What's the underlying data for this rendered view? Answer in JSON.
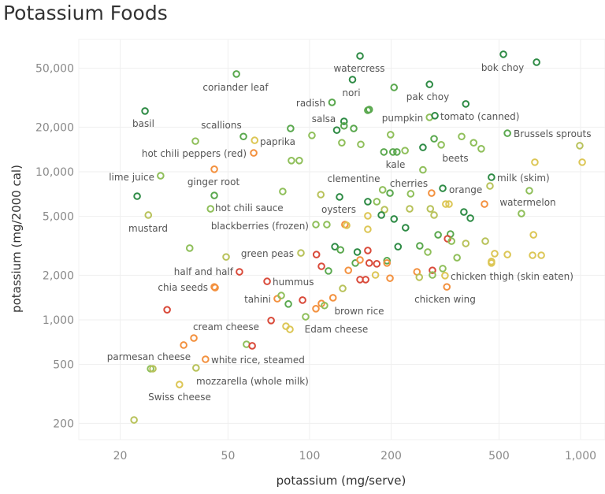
{
  "chart_data": {
    "type": "scatter",
    "title": "Potassium Foods",
    "xlabel": "potassium (mg/serve)",
    "ylabel": "potassium (mg/2000 cal)",
    "x_scale": "log",
    "y_scale": "log",
    "xlim": [
      15,
      1100
    ],
    "ylim": [
      150,
      75000
    ],
    "x_ticks": [
      20,
      50,
      100,
      200,
      500,
      1000
    ],
    "x_tick_labels": [
      "20",
      "50",
      "100",
      "200",
      "500",
      "1,000"
    ],
    "y_ticks": [
      200,
      500,
      1000,
      2000,
      5000,
      10000,
      20000,
      50000
    ],
    "y_tick_labels": [
      "200",
      "500",
      "1,000",
      "2,000",
      "5,000",
      "10,000",
      "20,000",
      "50,000"
    ],
    "grid": true,
    "legend": "none",
    "colors": {
      "dg": "#2e8b45",
      "g": "#5aa84e",
      "lg": "#8fbf5a",
      "yg": "#b8c25a",
      "y": "#dcc655",
      "o": "#f3913f",
      "r": "#d94a3a"
    },
    "points": [
      [
        153.5,
        60500,
        "dg",
        "watercress"
      ],
      [
        519,
        62100,
        "dg",
        "bok choy"
      ],
      [
        688,
        54900,
        "dg"
      ],
      [
        53.7,
        45700,
        "g",
        "coriander leaf"
      ],
      [
        144,
        41900,
        "dg",
        "nori"
      ],
      [
        205,
        37100,
        "g"
      ],
      [
        277,
        38900,
        "dg",
        "pak choy"
      ],
      [
        24.7,
        25700,
        "dg",
        "basil"
      ],
      [
        121,
        29400,
        "g",
        "radish"
      ],
      [
        377,
        28700,
        "dg"
      ],
      [
        164,
        26000,
        "g"
      ],
      [
        166,
        26300,
        "g"
      ],
      [
        134,
        21900,
        "dg",
        "salsa"
      ],
      [
        134,
        20400,
        "g"
      ],
      [
        126,
        19100,
        "dg"
      ],
      [
        145.5,
        19600,
        "g"
      ],
      [
        277,
        23300,
        "lg",
        "pumpkin"
      ],
      [
        290,
        23900,
        "dg",
        "tomato (canned)"
      ],
      [
        85.1,
        19600,
        "g"
      ],
      [
        57,
        17300,
        "g",
        "scallions"
      ],
      [
        37.9,
        16100,
        "lg"
      ],
      [
        62.7,
        16300,
        "y",
        "paprika"
      ],
      [
        62.2,
        13400,
        "o",
        "hot chili peppers (red)"
      ],
      [
        102,
        17600,
        "lg"
      ],
      [
        131.5,
        15700,
        "lg"
      ],
      [
        154.5,
        15300,
        "lg"
      ],
      [
        199,
        17800,
        "lg"
      ],
      [
        537,
        18200,
        "g",
        "Brussels sprouts"
      ],
      [
        288,
        16700,
        "g"
      ],
      [
        306,
        15200,
        "lg"
      ],
      [
        364,
        17300,
        "lg"
      ],
      [
        403,
        15700,
        "lg",
        "beets"
      ],
      [
        430,
        14300,
        "lg"
      ],
      [
        993,
        15000,
        "yg"
      ],
      [
        262,
        14600,
        "dg"
      ],
      [
        188,
        13600,
        "g"
      ],
      [
        203,
        13600,
        "g"
      ],
      [
        210,
        13600,
        "g",
        "kale"
      ],
      [
        225,
        13900,
        "lg"
      ],
      [
        85.7,
        11900,
        "lg"
      ],
      [
        91.6,
        11900,
        "lg"
      ],
      [
        678,
        11600,
        "y"
      ],
      [
        1014,
        11600,
        "y"
      ],
      [
        44.5,
        10400,
        "o",
        "ginger root"
      ],
      [
        262,
        10300,
        "lg"
      ],
      [
        28.2,
        9400,
        "lg",
        "lime juice"
      ],
      [
        469,
        9180,
        "dg",
        "milk (skim)"
      ],
      [
        463,
        8020,
        "yg"
      ],
      [
        647,
        7450,
        "lg"
      ],
      [
        23.1,
        6840,
        "dg"
      ],
      [
        44.5,
        6920,
        "g"
      ],
      [
        79.6,
        7360,
        "lg"
      ],
      [
        110,
        7010,
        "yg"
      ],
      [
        129,
        6760,
        "dg",
        "oysters"
      ],
      [
        186,
        7550,
        "lg",
        "clementine"
      ],
      [
        198,
        7180,
        "g"
      ],
      [
        236,
        7100,
        "lg",
        "cherries"
      ],
      [
        282,
        7180,
        "o"
      ],
      [
        310,
        7730,
        "dg",
        "orange"
      ],
      [
        164,
        6280,
        "dg"
      ],
      [
        177,
        6280,
        "lg"
      ],
      [
        318,
        6050,
        "y"
      ],
      [
        327,
        6050,
        "y"
      ],
      [
        442,
        6050,
        "o"
      ],
      [
        43.1,
        5620,
        "lg",
        "hot chili sauce"
      ],
      [
        189,
        5550,
        "yg"
      ],
      [
        234,
        5620,
        "yg"
      ],
      [
        279,
        5620,
        "yg"
      ],
      [
        288,
        5100,
        "yg"
      ],
      [
        371,
        5350,
        "dg"
      ],
      [
        392,
        4860,
        "dg"
      ],
      [
        605,
        5220,
        "lg",
        "watermelon"
      ],
      [
        164,
        5040,
        "y"
      ],
      [
        184,
        5100,
        "dg"
      ],
      [
        205,
        4800,
        "dg"
      ],
      [
        25.4,
        5100,
        "yg",
        "mustard"
      ],
      [
        105.5,
        4400,
        "lg",
        "blackberries (frozen)"
      ],
      [
        115.8,
        4400,
        "lg"
      ],
      [
        135,
        4400,
        "o"
      ],
      [
        137,
        4350,
        "y"
      ],
      [
        164,
        4090,
        "y"
      ],
      [
        226,
        4190,
        "dg"
      ],
      [
        298,
        3750,
        "g"
      ],
      [
        331,
        3800,
        "g"
      ],
      [
        670,
        3750,
        "y"
      ],
      [
        323,
        3530,
        "r"
      ],
      [
        334,
        3400,
        "lg"
      ],
      [
        377,
        3280,
        "yg"
      ],
      [
        445,
        3400,
        "yg"
      ],
      [
        124,
        3120,
        "dg"
      ],
      [
        130,
        2970,
        "g"
      ],
      [
        150,
        2870,
        "dg"
      ],
      [
        164,
        2940,
        "r"
      ],
      [
        212,
        3120,
        "dg"
      ],
      [
        255,
        3160,
        "g"
      ],
      [
        273,
        2870,
        "lg"
      ],
      [
        350,
        2630,
        "lg"
      ],
      [
        482,
        2800,
        "y"
      ],
      [
        537,
        2760,
        "y"
      ],
      [
        665,
        2730,
        "y"
      ],
      [
        716,
        2730,
        "y"
      ],
      [
        469,
        2480,
        "y"
      ],
      [
        469,
        2420,
        "y"
      ],
      [
        106,
        2760,
        "r"
      ],
      [
        110.6,
        2300,
        "r"
      ],
      [
        117.4,
        2140,
        "g"
      ],
      [
        147.5,
        2420,
        "g"
      ],
      [
        153.5,
        2540,
        "o"
      ],
      [
        166,
        2420,
        "r"
      ],
      [
        177,
        2390,
        "r"
      ],
      [
        193,
        2510,
        "g"
      ],
      [
        193,
        2420,
        "o"
      ],
      [
        139,
        2160,
        "o"
      ],
      [
        153.5,
        1870,
        "r"
      ],
      [
        161,
        1870,
        "r"
      ],
      [
        175,
        2010,
        "y"
      ],
      [
        198,
        1910,
        "o",
        "brown rice"
      ],
      [
        249,
        2110,
        "o"
      ],
      [
        254,
        1940,
        "yg"
      ],
      [
        284,
        2160,
        "r"
      ],
      [
        284,
        2010,
        "lg"
      ],
      [
        310,
        2220,
        "lg"
      ],
      [
        316,
        1990,
        "y",
        "chicken thigh (skin eaten)"
      ],
      [
        321,
        1670,
        "o",
        "chicken wing"
      ],
      [
        132.5,
        1630,
        "yg"
      ],
      [
        122,
        1410,
        "o"
      ],
      [
        110.6,
        1290,
        "o"
      ],
      [
        113.5,
        1250,
        "lg"
      ],
      [
        105.5,
        1190,
        "o"
      ],
      [
        36.1,
        3050,
        "lg"
      ],
      [
        49.2,
        2660,
        "yg"
      ],
      [
        92.9,
        2830,
        "yg",
        "green peas"
      ],
      [
        55.1,
        2110,
        "r",
        "half and half"
      ],
      [
        69.7,
        1820,
        "r",
        "hummus"
      ],
      [
        44.5,
        1670,
        "o",
        "chia seeds"
      ],
      [
        44.8,
        1650,
        "o"
      ],
      [
        76,
        1390,
        "o",
        "tahini"
      ],
      [
        78.6,
        1460,
        "lg"
      ],
      [
        83.5,
        1280,
        "g"
      ],
      [
        94.2,
        1360,
        "r"
      ],
      [
        29.8,
        1170,
        "r"
      ],
      [
        96.7,
        1050,
        "lg",
        "Edam cheese"
      ],
      [
        72.1,
        990,
        "r"
      ],
      [
        81.8,
        906,
        "y"
      ],
      [
        84.6,
        863,
        "y"
      ],
      [
        37.4,
        754,
        "o",
        "cream cheese"
      ],
      [
        34.3,
        676,
        "o"
      ],
      [
        58.5,
        684,
        "lg"
      ],
      [
        61.4,
        668,
        "r"
      ],
      [
        41.3,
        542,
        "o",
        "white rice, steamed"
      ],
      [
        25.9,
        468,
        "lg",
        "parmesan cheese"
      ],
      [
        26.4,
        468,
        "yg"
      ],
      [
        38.1,
        474,
        "yg",
        "mozzarella (whole milk)"
      ],
      [
        33.1,
        366,
        "y",
        "Swiss cheese"
      ],
      [
        22.5,
        211,
        "yg"
      ]
    ]
  }
}
